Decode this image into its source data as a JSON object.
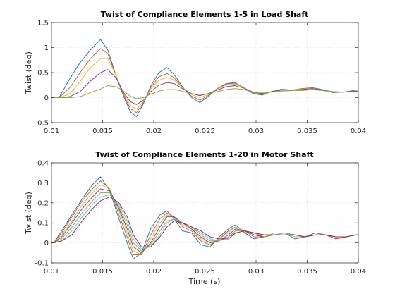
{
  "chart_data": [
    {
      "type": "line",
      "title": "Twist of Compliance Elements 1-5 in Load Shaft",
      "xlabel": "",
      "ylabel": "Twist (deg)",
      "xlim": [
        0.01,
        0.04
      ],
      "ylim": [
        -0.5,
        1.5
      ],
      "xticks": [
        0.01,
        0.015,
        0.02,
        0.025,
        0.03,
        0.035,
        0.04
      ],
      "xtick_labels": [
        "0.01",
        "0.015",
        "0.02",
        "0.025",
        "0.03",
        "0.035",
        "0.04"
      ],
      "yticks": [
        -0.5,
        0,
        0.5,
        1,
        1.5
      ],
      "ytick_labels": [
        "-0.5",
        "0",
        "0.5",
        "1",
        "1.5"
      ],
      "grid": true,
      "legend": "none",
      "series": [
        {
          "color": "#0072BD",
          "x": [
            0.01,
            0.0108,
            0.0118,
            0.0128,
            0.0138,
            0.0148,
            0.0155,
            0.0163,
            0.017,
            0.0177,
            0.0183,
            0.019,
            0.0197,
            0.0205,
            0.0213,
            0.022,
            0.0228,
            0.0237,
            0.0245,
            0.0253,
            0.0262,
            0.0271,
            0.0279,
            0.0288,
            0.0297,
            0.0306,
            0.0315,
            0.0325,
            0.0335,
            0.0345,
            0.0355,
            0.0365,
            0.0375,
            0.0385,
            0.0395,
            0.04
          ],
          "y": [
            0,
            0.02,
            0.38,
            0.7,
            0.95,
            1.16,
            0.95,
            0.45,
            0.05,
            -0.28,
            -0.38,
            -0.12,
            0.23,
            0.5,
            0.6,
            0.46,
            0.22,
            0.0,
            -0.1,
            0.02,
            0.18,
            0.28,
            0.3,
            0.2,
            0.08,
            0.05,
            0.12,
            0.17,
            0.15,
            0.18,
            0.2,
            0.16,
            0.1,
            0.11,
            0.14,
            0.13
          ]
        },
        {
          "color": "#D95319",
          "x": [
            0.01,
            0.0108,
            0.0118,
            0.0128,
            0.0138,
            0.0148,
            0.0155,
            0.0163,
            0.017,
            0.0177,
            0.0183,
            0.019,
            0.0197,
            0.0205,
            0.0213,
            0.022,
            0.0228,
            0.0237,
            0.0245,
            0.0253,
            0.0262,
            0.0271,
            0.0279,
            0.0288,
            0.0297,
            0.0306,
            0.0315,
            0.0325,
            0.0335,
            0.0345,
            0.0355,
            0.0365,
            0.0375,
            0.0385,
            0.0395,
            0.04
          ],
          "y": [
            0,
            0.01,
            0.2,
            0.5,
            0.78,
            0.98,
            0.88,
            0.45,
            0.08,
            -0.22,
            -0.3,
            -0.1,
            0.2,
            0.42,
            0.48,
            0.4,
            0.2,
            0.03,
            -0.05,
            0.04,
            0.18,
            0.27,
            0.29,
            0.2,
            0.09,
            0.06,
            0.12,
            0.16,
            0.15,
            0.18,
            0.19,
            0.15,
            0.11,
            0.11,
            0.13,
            0.13
          ]
        },
        {
          "color": "#EDB120",
          "x": [
            0.01,
            0.0108,
            0.0118,
            0.0128,
            0.0138,
            0.0148,
            0.0155,
            0.0163,
            0.017,
            0.0177,
            0.0183,
            0.019,
            0.0197,
            0.0205,
            0.0213,
            0.022,
            0.0228,
            0.0237,
            0.0245,
            0.0253,
            0.0262,
            0.0271,
            0.0279,
            0.0288,
            0.0297,
            0.0306,
            0.0315,
            0.0325,
            0.0335,
            0.0345,
            0.0355,
            0.0365,
            0.0375,
            0.0385,
            0.0395,
            0.04
          ],
          "y": [
            0,
            0.0,
            0.08,
            0.32,
            0.6,
            0.78,
            0.78,
            0.45,
            0.1,
            -0.15,
            -0.23,
            -0.08,
            0.17,
            0.35,
            0.4,
            0.35,
            0.2,
            0.06,
            0.0,
            0.06,
            0.17,
            0.25,
            0.27,
            0.2,
            0.1,
            0.07,
            0.12,
            0.16,
            0.15,
            0.17,
            0.19,
            0.15,
            0.11,
            0.11,
            0.13,
            0.13
          ]
        },
        {
          "color": "#7E2F8E",
          "x": [
            0.01,
            0.0108,
            0.0118,
            0.0128,
            0.0138,
            0.0148,
            0.0155,
            0.0163,
            0.017,
            0.0177,
            0.0183,
            0.019,
            0.0197,
            0.0205,
            0.0213,
            0.022,
            0.0228,
            0.0237,
            0.0245,
            0.0253,
            0.0262,
            0.0271,
            0.0279,
            0.0288,
            0.0297,
            0.0306,
            0.0315,
            0.0325,
            0.0335,
            0.0345,
            0.0355,
            0.0365,
            0.0375,
            0.0385,
            0.0395,
            0.04
          ],
          "y": [
            0,
            0.0,
            0.02,
            0.12,
            0.33,
            0.5,
            0.56,
            0.4,
            0.12,
            -0.08,
            -0.14,
            -0.05,
            0.12,
            0.25,
            0.3,
            0.28,
            0.18,
            0.08,
            0.04,
            0.08,
            0.15,
            0.22,
            0.24,
            0.19,
            0.11,
            0.08,
            0.12,
            0.15,
            0.15,
            0.16,
            0.18,
            0.15,
            0.12,
            0.11,
            0.13,
            0.13
          ]
        },
        {
          "color": "#77AC30",
          "x": [
            0.01,
            0.0108,
            0.0118,
            0.0128,
            0.0138,
            0.0148,
            0.0155,
            0.0163,
            0.017,
            0.0177,
            0.0183,
            0.019,
            0.0197,
            0.0205,
            0.0213,
            0.022,
            0.0228,
            0.0237,
            0.0245,
            0.0253,
            0.0262,
            0.0271,
            0.0279,
            0.0288,
            0.0297,
            0.0306,
            0.0315,
            0.0325,
            0.0335,
            0.0345,
            0.0355,
            0.0365,
            0.0375,
            0.0385,
            0.0395,
            0.04
          ],
          "y": [
            0,
            0.0,
            0.0,
            0.02,
            0.1,
            0.17,
            0.24,
            0.22,
            0.14,
            0.03,
            -0.02,
            0.0,
            0.07,
            0.13,
            0.16,
            0.16,
            0.13,
            0.08,
            0.06,
            0.08,
            0.12,
            0.16,
            0.18,
            0.16,
            0.11,
            0.09,
            0.11,
            0.13,
            0.14,
            0.14,
            0.16,
            0.14,
            0.12,
            0.11,
            0.12,
            0.12
          ]
        }
      ]
    },
    {
      "type": "line",
      "title": "Twist of Compliance Elements 1-20 in Motor Shaft",
      "xlabel": "Time (s)",
      "ylabel": "Twist (deg)",
      "xlim": [
        0.01,
        0.04
      ],
      "ylim": [
        -0.1,
        0.4
      ],
      "xticks": [
        0.01,
        0.015,
        0.02,
        0.025,
        0.03,
        0.035,
        0.04
      ],
      "xtick_labels": [
        "0.01",
        "0.015",
        "0.02",
        "0.025",
        "0.03",
        "0.035",
        "0.04"
      ],
      "yticks": [
        -0.1,
        0,
        0.1,
        0.2,
        0.3,
        0.4
      ],
      "ytick_labels": [
        "-0.1",
        "0",
        "0.1",
        "0.2",
        "0.3",
        "0.4"
      ],
      "grid": true,
      "legend": "none",
      "series": [
        {
          "color": "#0072BD",
          "x": [
            0.01,
            0.0102,
            0.011,
            0.012,
            0.013,
            0.014,
            0.0148,
            0.0157,
            0.0166,
            0.0174,
            0.018,
            0.0188,
            0.0197,
            0.0206,
            0.0213,
            0.022,
            0.0228,
            0.0237,
            0.0246,
            0.0255,
            0.0264,
            0.0273,
            0.028,
            0.0289,
            0.0298,
            0.0308,
            0.0318,
            0.0328,
            0.0338,
            0.0348,
            0.0358,
            0.0368,
            0.0378,
            0.0388,
            0.0398,
            0.04
          ],
          "y": [
            0.0,
            0.0,
            0.06,
            0.14,
            0.22,
            0.29,
            0.33,
            0.26,
            0.12,
            0.0,
            -0.08,
            -0.05,
            0.07,
            0.14,
            0.16,
            0.12,
            0.06,
            0.05,
            -0.01,
            -0.02,
            0.03,
            0.07,
            0.09,
            0.05,
            0.02,
            0.03,
            0.05,
            0.05,
            0.02,
            0.03,
            0.05,
            0.04,
            0.02,
            0.03,
            0.04,
            0.04
          ]
        },
        {
          "color": "#D95319",
          "x": [
            0.01,
            0.0102,
            0.011,
            0.012,
            0.013,
            0.014,
            0.0148,
            0.0157,
            0.0166,
            0.0174,
            0.018,
            0.0188,
            0.0197,
            0.0206,
            0.0213,
            0.022,
            0.0228,
            0.0237,
            0.0246,
            0.0255,
            0.0264,
            0.0273,
            0.028,
            0.0289,
            0.0298,
            0.0308,
            0.0318,
            0.0328,
            0.0338,
            0.0348,
            0.0358,
            0.0368,
            0.0378,
            0.0388,
            0.0398,
            0.04
          ],
          "y": [
            0.0,
            0.0,
            0.05,
            0.13,
            0.21,
            0.27,
            0.31,
            0.27,
            0.14,
            0.03,
            -0.06,
            -0.06,
            0.04,
            0.12,
            0.15,
            0.13,
            0.08,
            0.06,
            0.01,
            -0.01,
            0.02,
            0.06,
            0.08,
            0.06,
            0.03,
            0.03,
            0.05,
            0.05,
            0.03,
            0.03,
            0.05,
            0.04,
            0.02,
            0.03,
            0.04,
            0.04
          ]
        },
        {
          "color": "#EDB120",
          "x": [
            0.01,
            0.0102,
            0.011,
            0.012,
            0.013,
            0.014,
            0.0148,
            0.0157,
            0.0166,
            0.0174,
            0.018,
            0.0188,
            0.0197,
            0.0206,
            0.0213,
            0.022,
            0.0228,
            0.0237,
            0.0246,
            0.0255,
            0.0264,
            0.0273,
            0.028,
            0.0289,
            0.0298,
            0.0308,
            0.0318,
            0.0328,
            0.0338,
            0.0348,
            0.0358,
            0.0368,
            0.0378,
            0.0388,
            0.0398,
            0.04
          ],
          "y": [
            0.0,
            0.0,
            0.04,
            0.11,
            0.19,
            0.25,
            0.29,
            0.27,
            0.16,
            0.05,
            -0.04,
            -0.06,
            0.02,
            0.1,
            0.14,
            0.13,
            0.09,
            0.07,
            0.02,
            0.0,
            0.02,
            0.05,
            0.08,
            0.06,
            0.04,
            0.03,
            0.05,
            0.05,
            0.03,
            0.03,
            0.04,
            0.04,
            0.03,
            0.03,
            0.04,
            0.04
          ]
        },
        {
          "color": "#7E2F8E",
          "x": [
            0.01,
            0.0102,
            0.011,
            0.012,
            0.013,
            0.014,
            0.0148,
            0.0157,
            0.0166,
            0.0174,
            0.018,
            0.0188,
            0.0197,
            0.0206,
            0.0213,
            0.022,
            0.0228,
            0.0237,
            0.0246,
            0.0255,
            0.0264,
            0.0273,
            0.028,
            0.0289,
            0.0298,
            0.0308,
            0.0318,
            0.0328,
            0.0338,
            0.0348,
            0.0358,
            0.0368,
            0.0378,
            0.0388,
            0.0398,
            0.04
          ],
          "y": [
            0.0,
            0.0,
            0.03,
            0.1,
            0.17,
            0.23,
            0.27,
            0.26,
            0.17,
            0.07,
            -0.02,
            -0.05,
            0.0,
            0.08,
            0.13,
            0.13,
            0.1,
            0.07,
            0.03,
            0.0,
            0.01,
            0.04,
            0.07,
            0.06,
            0.04,
            0.03,
            0.04,
            0.05,
            0.04,
            0.03,
            0.04,
            0.04,
            0.03,
            0.03,
            0.04,
            0.04
          ]
        },
        {
          "color": "#77AC30",
          "x": [
            0.01,
            0.0102,
            0.011,
            0.012,
            0.013,
            0.014,
            0.0148,
            0.0157,
            0.0166,
            0.0174,
            0.018,
            0.0188,
            0.0197,
            0.0206,
            0.0213,
            0.022,
            0.0228,
            0.0237,
            0.0246,
            0.0255,
            0.0264,
            0.0273,
            0.028,
            0.0289,
            0.0298,
            0.0308,
            0.0318,
            0.0328,
            0.0338,
            0.0348,
            0.0358,
            0.0368,
            0.0378,
            0.0388,
            0.0398,
            0.04
          ],
          "y": [
            0.0,
            0.0,
            0.02,
            0.08,
            0.15,
            0.21,
            0.25,
            0.25,
            0.18,
            0.09,
            0.0,
            -0.04,
            -0.01,
            0.06,
            0.11,
            0.12,
            0.1,
            0.08,
            0.04,
            0.01,
            0.01,
            0.03,
            0.06,
            0.06,
            0.05,
            0.03,
            0.04,
            0.05,
            0.04,
            0.03,
            0.04,
            0.04,
            0.03,
            0.03,
            0.04,
            0.04
          ]
        },
        {
          "color": "#4DBEEE",
          "x": [
            0.01,
            0.0102,
            0.011,
            0.012,
            0.013,
            0.014,
            0.0148,
            0.0157,
            0.0166,
            0.0174,
            0.018,
            0.0188,
            0.0197,
            0.0206,
            0.0213,
            0.022,
            0.0228,
            0.0237,
            0.0246,
            0.0255,
            0.0264,
            0.0273,
            0.028,
            0.0289,
            0.0298,
            0.0308,
            0.0318,
            0.0328,
            0.0338,
            0.0348,
            0.0358,
            0.0368,
            0.0378,
            0.0388,
            0.0398,
            0.04
          ],
          "y": [
            0.0,
            0.0,
            0.01,
            0.06,
            0.13,
            0.19,
            0.23,
            0.24,
            0.19,
            0.11,
            0.02,
            -0.03,
            -0.02,
            0.04,
            0.1,
            0.12,
            0.1,
            0.08,
            0.05,
            0.02,
            0.01,
            0.03,
            0.05,
            0.06,
            0.05,
            0.04,
            0.04,
            0.05,
            0.04,
            0.03,
            0.04,
            0.04,
            0.03,
            0.03,
            0.04,
            0.04
          ]
        },
        {
          "color": "#A2142F",
          "x": [
            0.01,
            0.0102,
            0.011,
            0.012,
            0.013,
            0.014,
            0.0148,
            0.0157,
            0.0166,
            0.0174,
            0.018,
            0.0188,
            0.0197,
            0.0206,
            0.0213,
            0.022,
            0.0228,
            0.0237,
            0.0246,
            0.0255,
            0.0264,
            0.0273,
            0.028,
            0.0289,
            0.0298,
            0.0308,
            0.0318,
            0.0328,
            0.0338,
            0.0348,
            0.0358,
            0.0368,
            0.0378,
            0.0388,
            0.0398,
            0.04
          ],
          "y": [
            0.0,
            0.0,
            0.01,
            0.04,
            0.11,
            0.17,
            0.21,
            0.23,
            0.2,
            0.13,
            0.04,
            -0.02,
            -0.02,
            0.03,
            0.08,
            0.11,
            0.1,
            0.08,
            0.06,
            0.03,
            0.02,
            0.02,
            0.05,
            0.06,
            0.05,
            0.04,
            0.04,
            0.04,
            0.04,
            0.03,
            0.04,
            0.04,
            0.03,
            0.03,
            0.04,
            0.04
          ]
        }
      ]
    }
  ]
}
